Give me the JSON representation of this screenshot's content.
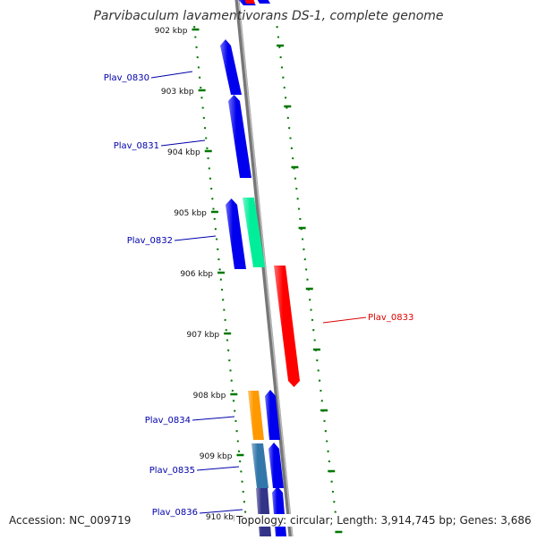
{
  "title": "Parvibaculum lavamentivorans DS-1, complete genome",
  "accession_text": "Accession: NC_009719",
  "topology_text": "Topology: circular; Length: 3,914,745 bp; Genes: 3,686",
  "colors": {
    "backbone": "#808080",
    "tick": "#008000",
    "gene_default": "#0000ee",
    "label_default": "#0000aa",
    "label_highlight": "#dd0000"
  },
  "kbp_ticks": [
    "902 kbp",
    "903 kbp",
    "904 kbp",
    "905 kbp",
    "906 kbp",
    "907 kbp",
    "908 kbp",
    "909 kbp",
    "910 kbp"
  ],
  "gene_labels": [
    {
      "name": "Plav_0830",
      "color": "#0000aa"
    },
    {
      "name": "Plav_0831",
      "color": "#0000aa"
    },
    {
      "name": "Plav_0832",
      "color": "#0000aa"
    },
    {
      "name": "Plav_0833",
      "color": "#dd0000"
    },
    {
      "name": "Plav_0834",
      "color": "#0000aa"
    },
    {
      "name": "Plav_0835",
      "color": "#0000aa"
    },
    {
      "name": "Plav_0836",
      "color": "#0000aa"
    }
  ],
  "genes": [
    {
      "color": "#0000ee",
      "direction": "forward"
    },
    {
      "color": "#0000ee",
      "direction": "forward"
    },
    {
      "color": "#0000ee",
      "direction": "forward"
    },
    {
      "color": "#00ee99",
      "direction": "none"
    },
    {
      "color": "#0000ee",
      "direction": "forward"
    },
    {
      "color": "#ff0000",
      "direction": "reverse"
    },
    {
      "color": "#ff9900",
      "direction": "none"
    },
    {
      "color": "#0000ee",
      "direction": "forward"
    },
    {
      "color": "#3377aa",
      "direction": "none"
    },
    {
      "color": "#0000ee",
      "direction": "forward"
    },
    {
      "color": "#333388",
      "direction": "none"
    },
    {
      "color": "#0000ee",
      "direction": "forward"
    },
    {
      "color": "#ff0000",
      "direction": "none"
    },
    {
      "color": "#0000ee",
      "direction": "none"
    }
  ]
}
